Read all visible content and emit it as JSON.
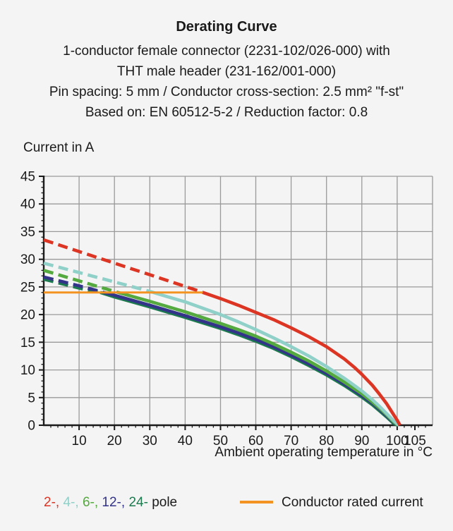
{
  "header": {
    "title": "Derating Curve",
    "subtitle_lines": [
      "1-conductor female connector (2231-102/026-000) with",
      "THT male header (231-162/001-000)",
      "Pin spacing: 5 mm / Conductor cross-section: 2.5 mm² \"f-st\"",
      "Based on: EN 60512-5-2 / Reduction factor: 0.8"
    ]
  },
  "chart_data": {
    "type": "line",
    "title": "Derating Curve",
    "ylabel": "Current in A",
    "xlabel": "Ambient operating temperature in °C",
    "xlim": [
      0,
      110
    ],
    "ylim": [
      0,
      45
    ],
    "x_major_ticks": [
      10,
      20,
      30,
      40,
      50,
      60,
      70,
      80,
      90,
      100,
      105
    ],
    "x_gridline_step": 10,
    "x_minor_tick_step": 2,
    "y_major_ticks": [
      0,
      5,
      10,
      15,
      20,
      25,
      30,
      35,
      40,
      45
    ],
    "y_minor_tick_step": 1,
    "grid": true,
    "grid_color": "#9a9a9a",
    "axis_color": "#1a1a1a",
    "dash_above_value": 24,
    "rated_current": {
      "value": 24,
      "x_start": 0,
      "x_end": 45,
      "color": "#f39422",
      "label": "Conductor rated current"
    },
    "series": [
      {
        "name": "24-pole",
        "color": "#1d7a4f",
        "points": [
          [
            0,
            26.4
          ],
          [
            10,
            24.8
          ],
          [
            16,
            24
          ],
          [
            20,
            23.2
          ],
          [
            30,
            21.4
          ],
          [
            40,
            19.5
          ],
          [
            50,
            17.5
          ],
          [
            55,
            16.4
          ],
          [
            60,
            15.2
          ],
          [
            65,
            13.9
          ],
          [
            70,
            12.4
          ],
          [
            75,
            10.8
          ],
          [
            80,
            9.1
          ],
          [
            85,
            7.2
          ],
          [
            90,
            5.1
          ],
          [
            93,
            3.7
          ],
          [
            95,
            2.6
          ],
          [
            97,
            1.5
          ],
          [
            99,
            0.3
          ],
          [
            100.2,
            0
          ]
        ]
      },
      {
        "name": "12-pole",
        "color": "#333389",
        "points": [
          [
            0,
            26.8
          ],
          [
            10,
            25.2
          ],
          [
            17,
            24
          ],
          [
            20,
            23.5
          ],
          [
            30,
            21.7
          ],
          [
            40,
            19.8
          ],
          [
            50,
            17.8
          ],
          [
            55,
            16.7
          ],
          [
            60,
            15.5
          ],
          [
            65,
            14.2
          ],
          [
            70,
            12.7
          ],
          [
            75,
            11.1
          ],
          [
            80,
            9.4
          ],
          [
            85,
            7.5
          ],
          [
            90,
            5.4
          ],
          [
            93,
            4.0
          ],
          [
            95,
            2.9
          ],
          [
            97,
            1.7
          ],
          [
            99,
            0.5
          ],
          [
            100.3,
            0
          ]
        ]
      },
      {
        "name": "6-pole",
        "color": "#54a93f",
        "points": [
          [
            0,
            28
          ],
          [
            10,
            26.1
          ],
          [
            20,
            24.2
          ],
          [
            21,
            24
          ],
          [
            30,
            22.4
          ],
          [
            40,
            20.5
          ],
          [
            50,
            18.4
          ],
          [
            55,
            17.3
          ],
          [
            60,
            16.1
          ],
          [
            65,
            14.7
          ],
          [
            70,
            13.2
          ],
          [
            75,
            11.6
          ],
          [
            80,
            9.8
          ],
          [
            85,
            7.8
          ],
          [
            90,
            5.7
          ],
          [
            93,
            4.2
          ],
          [
            95,
            3.1
          ],
          [
            97,
            1.9
          ],
          [
            99,
            0.6
          ],
          [
            100.3,
            0
          ]
        ]
      },
      {
        "name": "4-pole",
        "color": "#8fd0c9",
        "points": [
          [
            0,
            29.3
          ],
          [
            10,
            27.6
          ],
          [
            20,
            25.9
          ],
          [
            30,
            24.2
          ],
          [
            32,
            23.8
          ],
          [
            40,
            22.3
          ],
          [
            50,
            20.0
          ],
          [
            55,
            18.7
          ],
          [
            60,
            17.3
          ],
          [
            65,
            15.8
          ],
          [
            70,
            14.2
          ],
          [
            75,
            12.5
          ],
          [
            80,
            10.6
          ],
          [
            85,
            8.5
          ],
          [
            90,
            6.2
          ],
          [
            93,
            4.6
          ],
          [
            95,
            3.4
          ],
          [
            97,
            2.1
          ],
          [
            99,
            0.8
          ],
          [
            100.4,
            0
          ]
        ]
      },
      {
        "name": "2-pole",
        "color": "#dd3524",
        "points": [
          [
            0,
            33.5
          ],
          [
            10,
            31.4
          ],
          [
            20,
            29.3
          ],
          [
            30,
            27.2
          ],
          [
            40,
            25.1
          ],
          [
            45,
            24
          ],
          [
            50,
            22.9
          ],
          [
            55,
            21.7
          ],
          [
            60,
            20.4
          ],
          [
            65,
            19.1
          ],
          [
            70,
            17.6
          ],
          [
            75,
            16.0
          ],
          [
            80,
            14.2
          ],
          [
            85,
            12.0
          ],
          [
            88,
            10.4
          ],
          [
            90,
            9.2
          ],
          [
            93,
            7.2
          ],
          [
            95,
            5.6
          ],
          [
            97,
            3.9
          ],
          [
            99,
            1.9
          ],
          [
            100,
            0.9
          ],
          [
            100.8,
            0
          ]
        ]
      }
    ]
  },
  "legend": {
    "pole_entries": [
      {
        "label": "2-,",
        "color": "#dd3524"
      },
      {
        "label": "4-,",
        "color": "#8fd0c9"
      },
      {
        "label": "6-,",
        "color": "#54a93f"
      },
      {
        "label": "12-,",
        "color": "#333389"
      },
      {
        "label": "24-",
        "color": "#1d7a4f"
      }
    ],
    "pole_suffix": "pole",
    "rated_label": "Conductor rated current"
  }
}
